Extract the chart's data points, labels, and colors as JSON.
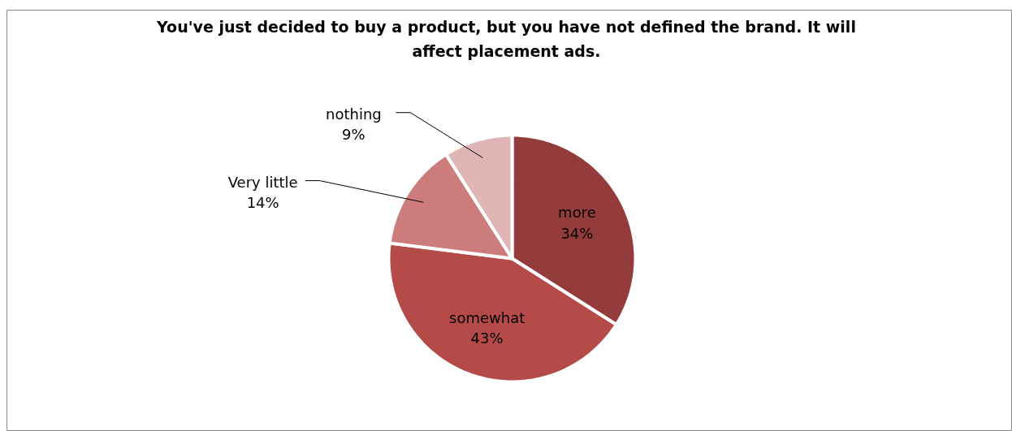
{
  "chart_data": {
    "type": "pie",
    "title": "You've just decided to buy a product, but you have not defined the brand. It will affect placement ads.",
    "categories": [
      "more",
      "somewhat",
      "Very little",
      "nothing"
    ],
    "values": [
      34,
      43,
      14,
      9
    ],
    "value_labels": [
      "34%",
      "43%",
      "14%",
      "9%"
    ],
    "colors": [
      "#943c3b",
      "#b54b49",
      "#cc7d7b",
      "#e0b5b5"
    ],
    "legend": false
  }
}
